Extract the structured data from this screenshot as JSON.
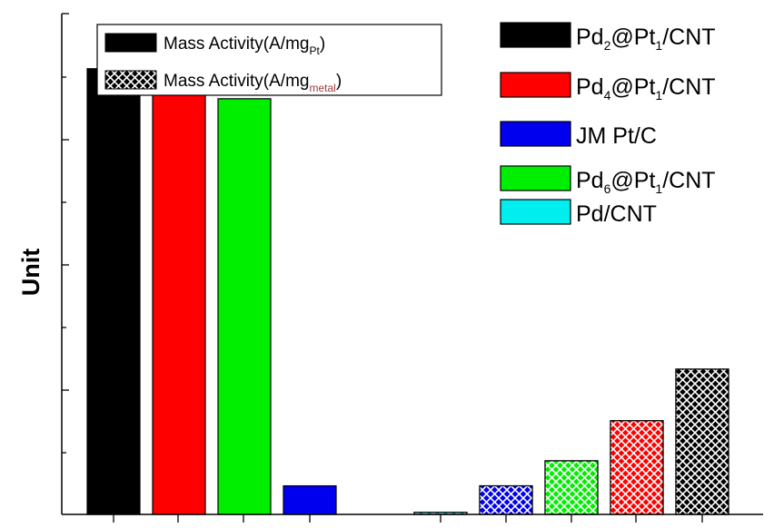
{
  "chart_data": {
    "type": "bar",
    "ylabel": "Unit",
    "xlabel": "",
    "title": "",
    "y_tick_labels_shown": false,
    "x_tick_labels_shown": false,
    "ylim": [
      0,
      1
    ],
    "groups": [
      {
        "fill_style": "solid",
        "legend_label": {
          "base": "Mass Activity(A/mg",
          "sub": "Pt",
          "tail": ")"
        },
        "bars": [
          {
            "series": "Pd2@Pt1/CNT",
            "value": 0.89,
            "color": "#000000"
          },
          {
            "series": "Pd4@Pt1/CNT",
            "value": 0.87,
            "color": "#ff0000"
          },
          {
            "series": "Pd6@Pt1/CNT",
            "value": 0.83,
            "color": "#00ee00"
          },
          {
            "series": "JM Pt/C",
            "value": 0.057,
            "color": "#0000ee"
          }
        ]
      },
      {
        "fill_style": "crosshatch",
        "legend_label": {
          "base": "Mass Activity(A/mg",
          "sub": "metal",
          "tail": ")"
        },
        "bars": [
          {
            "series": "Pd/CNT",
            "value": 0.004,
            "color": "#00eeee"
          },
          {
            "series": "JM Pt/C",
            "value": 0.057,
            "color": "#0000ee"
          },
          {
            "series": "Pd6@Pt1/CNT",
            "value": 0.107,
            "color": "#00ee00"
          },
          {
            "series": "Pd4@Pt1/CNT",
            "value": 0.187,
            "color": "#ff0000"
          },
          {
            "series": "Pd2@Pt1/CNT",
            "value": 0.29,
            "color": "#000000"
          }
        ]
      }
    ],
    "series_legend": [
      {
        "key": "Pd2@Pt1/CNT",
        "color": "#000000",
        "parts": [
          {
            "t": "Pd"
          },
          {
            "t": "2",
            "sub": true
          },
          {
            "t": "@Pt"
          },
          {
            "t": "1",
            "sub": true
          },
          {
            "t": "/CNT"
          }
        ]
      },
      {
        "key": "Pd4@Pt1/CNT",
        "color": "#ff0000",
        "parts": [
          {
            "t": "Pd"
          },
          {
            "t": "4",
            "sub": true
          },
          {
            "t": "@Pt"
          },
          {
            "t": "1",
            "sub": true
          },
          {
            "t": "/CNT"
          }
        ]
      },
      {
        "key": "JM Pt/C",
        "color": "#0000ee",
        "parts": [
          {
            "t": "JM Pt/C"
          }
        ]
      },
      {
        "key": "Pd6@Pt1/CNT",
        "color": "#00ee00",
        "parts": [
          {
            "t": "Pd"
          },
          {
            "t": "6",
            "sub": true
          },
          {
            "t": "@Pt"
          },
          {
            "t": "1",
            "sub": true
          },
          {
            "t": "/CNT"
          }
        ]
      },
      {
        "key": "Pd/CNT",
        "color": "#00eeee",
        "parts": [
          {
            "t": "Pd/CNT"
          }
        ]
      }
    ],
    "legend_placement": {
      "fill_legend": "top-left",
      "series_legend": "top-right"
    }
  }
}
